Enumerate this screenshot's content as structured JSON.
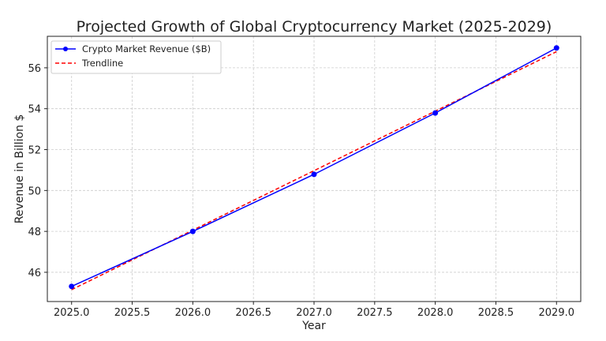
{
  "chart_data": {
    "type": "line",
    "title": "Projected Growth of Global Cryptocurrency Market (2025-2029)",
    "xlabel": "Year",
    "ylabel": "Revenue in Billion $",
    "xlim": [
      2024.8,
      2029.2
    ],
    "ylim": [
      44.57,
      57.54
    ],
    "xticks": [
      "2025.0",
      "2025.5",
      "2026.0",
      "2026.5",
      "2027.0",
      "2027.5",
      "2028.0",
      "2028.5",
      "2029.0"
    ],
    "yticks": [
      "46",
      "48",
      "50",
      "52",
      "54",
      "56"
    ],
    "grid": true,
    "legend_position": "top-left",
    "series": [
      {
        "name": "Crypto Market Revenue ($B)",
        "color": "#0000ff",
        "style": "solid-markers",
        "x": [
          2025,
          2026,
          2027,
          2028,
          2029
        ],
        "y": [
          45.31,
          48.0,
          50.79,
          53.79,
          56.97
        ]
      },
      {
        "name": "Trendline",
        "color": "#ff0000",
        "style": "dashed",
        "x": [
          2025,
          2029
        ],
        "y": [
          45.15,
          56.79
        ]
      }
    ]
  }
}
